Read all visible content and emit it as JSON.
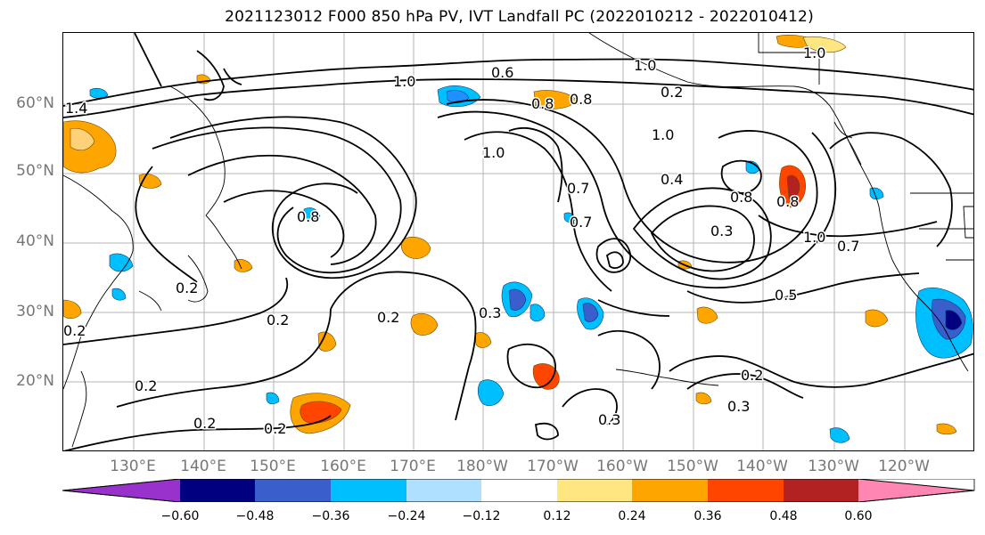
{
  "title": "2021123012 F000 850 hPa PV, IVT Landfall PC (2022010212 - 2022010412)",
  "map": {
    "lat_labels": [
      "60°N",
      "50°N",
      "40°N",
      "30°N",
      "20°N"
    ],
    "lon_labels": [
      "130°E",
      "140°E",
      "150°E",
      "160°E",
      "170°E",
      "180°W",
      "170°W",
      "160°W",
      "150°W",
      "140°W",
      "130°W",
      "120°W"
    ],
    "contour_labels": [
      "1.4",
      "0.6",
      "1.0",
      "1.0",
      "0.8",
      "1.0",
      "1.0",
      "0.8",
      "0.2",
      "1.0",
      "0.8",
      "0.7",
      "0.4",
      "0.8",
      "0.8",
      "1.0",
      "0.7",
      "0.5",
      "0.3",
      "0.7",
      "0.2",
      "0.2",
      "0.2",
      "0.2",
      "0.2",
      "0.3",
      "0.2",
      "0.2",
      "0.3",
      "0.2",
      "0.3"
    ],
    "colors": {
      "negative_strong": "#9932cc",
      "negative": "#0000cd",
      "negative_mid": "#1e90ff",
      "negative_light": "#00bfff",
      "negative_faint": "#b0e0ff",
      "positive_faint": "#ffe680",
      "positive": "#ffa500",
      "positive_mid": "#ff4500",
      "positive_strong": "#b22222",
      "positive_max": "#ff85b3"
    }
  },
  "colorbar": {
    "ticks": [
      "−0.60",
      "−0.48",
      "−0.36",
      "−0.24",
      "−0.12",
      "0.12",
      "0.24",
      "0.36",
      "0.48",
      "0.60"
    ],
    "colors": [
      "#9932cc",
      "#000080",
      "#3a5fcd",
      "#00bfff",
      "#b0e0ff",
      "#ffffff",
      "#ffe680",
      "#ffa500",
      "#ff4500",
      "#b22222",
      "#ff85b3"
    ]
  }
}
